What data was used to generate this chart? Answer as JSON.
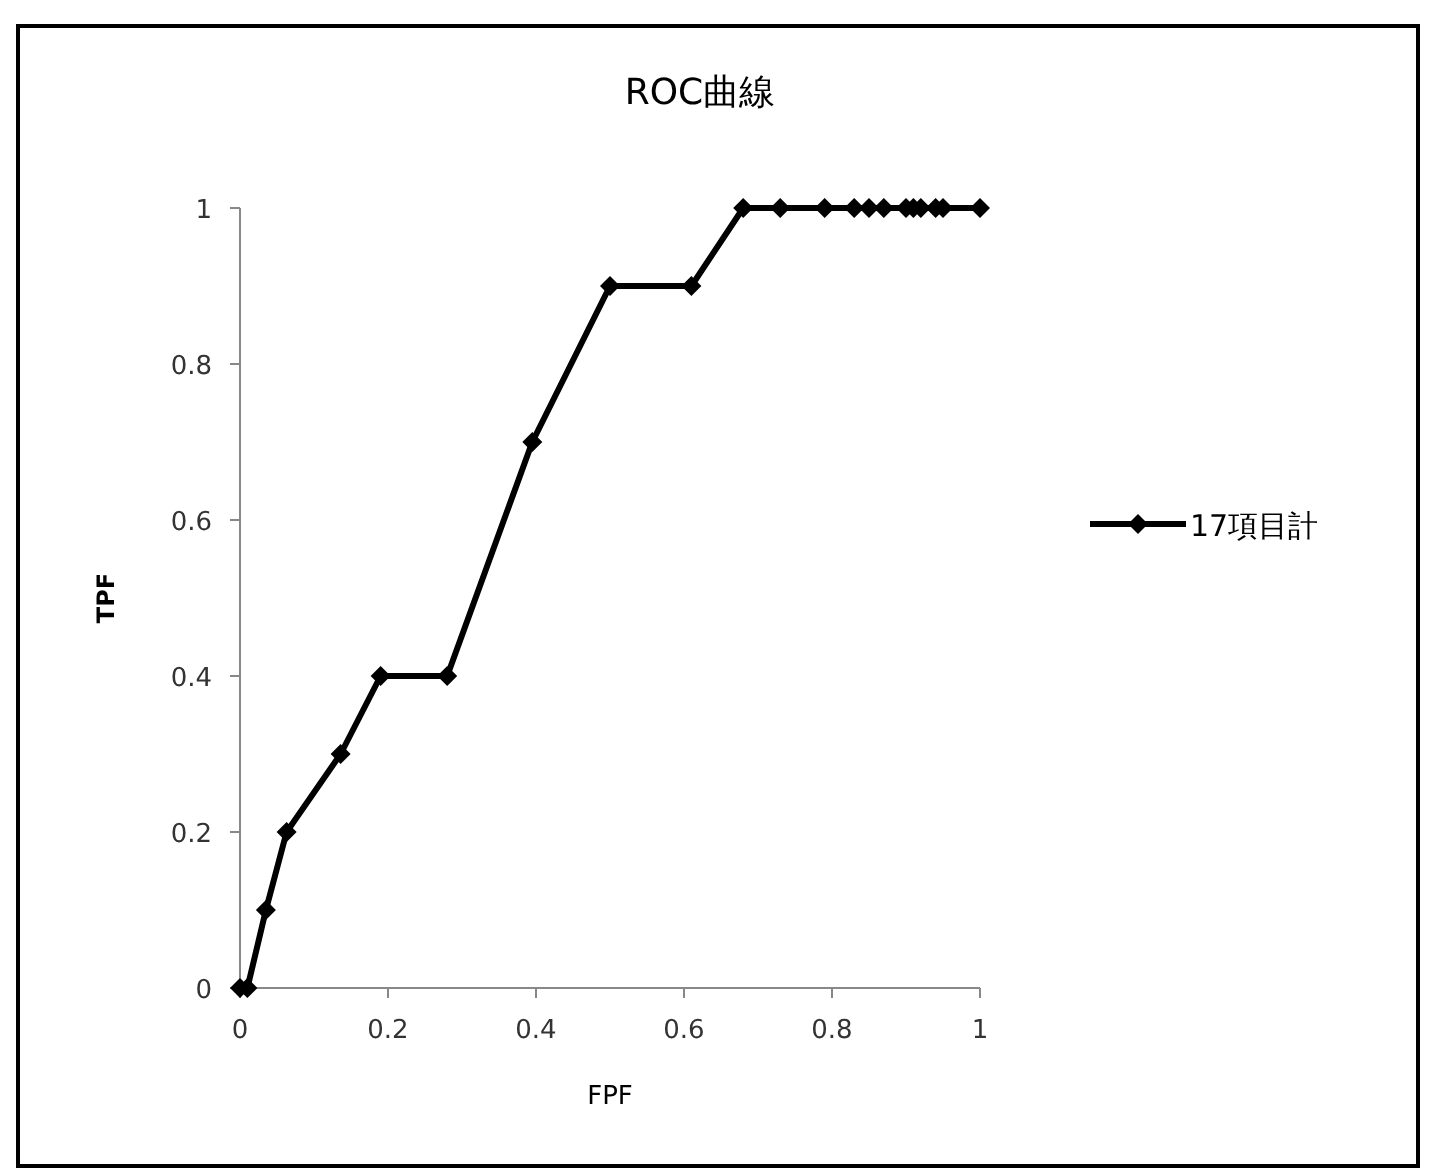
{
  "chart_data": {
    "type": "line",
    "title": "ROC曲線",
    "xlabel": "FPF",
    "ylabel": "TPF",
    "xlim": [
      0,
      1
    ],
    "ylim": [
      0,
      1
    ],
    "xticks": [
      0,
      0.2,
      0.4,
      0.6,
      0.8,
      1
    ],
    "yticks": [
      0,
      0.2,
      0.4,
      0.6,
      0.8,
      1
    ],
    "legend": "right",
    "marker": "diamond",
    "grid": false,
    "series": [
      {
        "name": "17項目計",
        "color": "#000000",
        "x": [
          0,
          0.01,
          0.035,
          0.063,
          0.136,
          0.19,
          0.28,
          0.395,
          0.5,
          0.61,
          0.68,
          0.73,
          0.79,
          0.83,
          0.85,
          0.87,
          0.9,
          0.91,
          0.92,
          0.94,
          0.95,
          1
        ],
        "values": [
          0,
          0,
          0.1,
          0.2,
          0.3,
          0.4,
          0.4,
          0.7,
          0.9,
          0.9,
          1,
          1,
          1,
          1,
          1,
          1,
          1,
          1,
          1,
          1,
          1,
          1
        ]
      }
    ]
  }
}
